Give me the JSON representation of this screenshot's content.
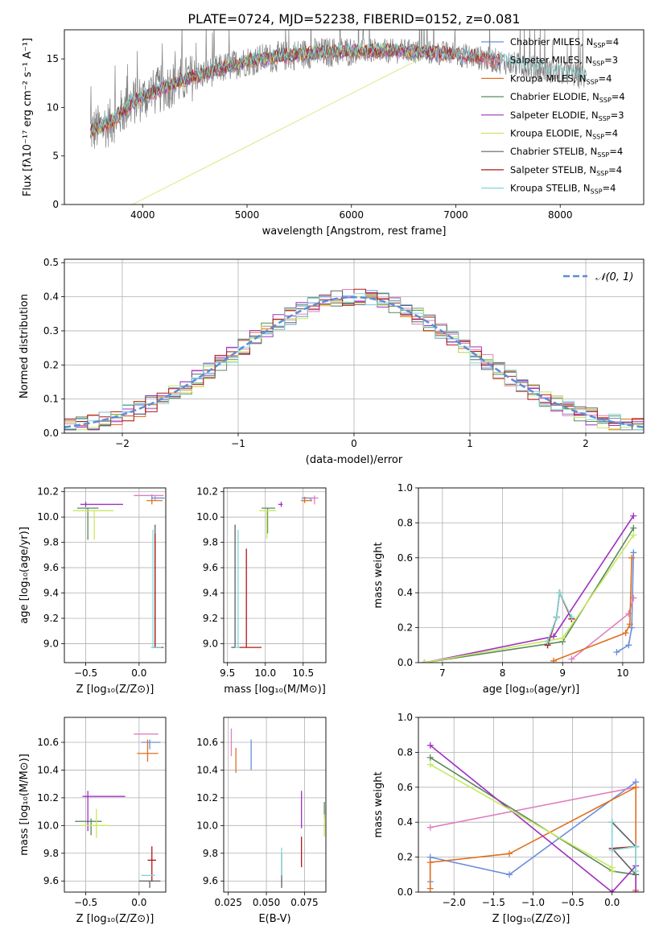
{
  "title": "PLATE=0724, MJD=52238, FIBERID=0152, z=0.081",
  "colors": {
    "chabrier_miles": "#6a8fdc",
    "salpeter_miles": "#e07fbf",
    "kroupa_miles": "#e07020",
    "chabrier_elodie": "#5a8a5a",
    "salpeter_elodie": "#a030c0",
    "kroupa_elodie": "#c8e860",
    "chabrier_stelib": "#606060",
    "salpeter_stelib": "#b01818",
    "kroupa_stelib": "#80d8d8",
    "gauss": "#5b8dd6",
    "data": "#808080"
  },
  "chart_data": [
    {
      "id": "spectrum",
      "type": "line",
      "xlabel": "wavelength [Angstrom, rest frame]",
      "ylabel": "Flux [fλ10⁻¹⁷ erg cm⁻² s⁻¹ A⁻¹]",
      "xlim": [
        3250,
        8800
      ],
      "ylim": [
        0,
        18
      ],
      "xticks": [
        "4000",
        "5000",
        "6000",
        "7000",
        "8000"
      ],
      "yticks": [
        "0",
        "5",
        "10",
        "15"
      ],
      "legend_position": "top-right",
      "legend": [
        {
          "key": "chabrier_miles",
          "label": "Chabrier MILES, N",
          "sub": "SSP",
          "tail": "=4"
        },
        {
          "key": "salpeter_miles",
          "label": "Salpeter MILES, N",
          "sub": "SSP",
          "tail": "=3"
        },
        {
          "key": "kroupa_miles",
          "label": "Kroupa MILES, N",
          "sub": "SSP",
          "tail": "=4"
        },
        {
          "key": "chabrier_elodie",
          "label": "Chabrier ELODIE, N",
          "sub": "SSP",
          "tail": "=4"
        },
        {
          "key": "salpeter_elodie",
          "label": "Salpeter ELODIE, N",
          "sub": "SSP",
          "tail": "=3"
        },
        {
          "key": "kroupa_elodie",
          "label": "Kroupa ELODIE, N",
          "sub": "SSP",
          "tail": "=4"
        },
        {
          "key": "chabrier_stelib",
          "label": "Chabrier STELIB, N",
          "sub": "SSP",
          "tail": "=4"
        },
        {
          "key": "salpeter_stelib",
          "label": "Salpeter STELIB, N",
          "sub": "SSP",
          "tail": "=4"
        },
        {
          "key": "kroupa_stelib",
          "label": "Kroupa STELIB, N",
          "sub": "SSP",
          "tail": "=4"
        }
      ],
      "continuum": {
        "x": [
          3500,
          3700,
          3900,
          4100,
          4300,
          4600,
          5000,
          5500,
          6000,
          6500,
          7000,
          7400
        ],
        "y": [
          7.5,
          8.5,
          10.5,
          11.5,
          12.5,
          13.5,
          14.8,
          15.5,
          15.8,
          15.8,
          15.5,
          14.8
        ]
      }
    },
    {
      "id": "residuals",
      "type": "histogram",
      "xlabel": "(data-model)/error",
      "ylabel": "Normed distribution",
      "xlim": [
        -2.5,
        2.5
      ],
      "ylim": [
        0,
        0.51
      ],
      "xticks": [
        "−2",
        "−1",
        "0",
        "1",
        "2"
      ],
      "yticks": [
        "0.0",
        "0.1",
        "0.2",
        "0.3",
        "0.4",
        "0.5"
      ],
      "legend": "𝒩(0, 1)",
      "legend_position": "top-right",
      "gaussian": {
        "mu": 0,
        "sigma": 1
      }
    },
    {
      "id": "age_vs_Z",
      "type": "errorbar",
      "xlabel": "Z [log₁₀(Z/Z⊙)]",
      "ylabel": "age  [log₁₀(age/yr)]",
      "xlim": [
        -0.7,
        0.25
      ],
      "ylim": [
        8.85,
        10.23
      ],
      "xticks": [
        "−0.5",
        "0.0"
      ],
      "yticks": [
        "9.0",
        "9.2",
        "9.4",
        "9.6",
        "9.8",
        "10.0",
        "10.2"
      ],
      "points": [
        {
          "key": "chabrier_miles",
          "x": 0.12,
          "y": 10.15,
          "ex": [
            0.0,
            0.12
          ],
          "ey": [
            0.02,
            0.03
          ]
        },
        {
          "key": "salpeter_miles",
          "x": 0.15,
          "y": 10.17,
          "ex": [
            0.2,
            0.08
          ],
          "ey": [
            0.04,
            0.0
          ]
        },
        {
          "key": "kroupa_miles",
          "x": 0.12,
          "y": 10.13,
          "ex": [
            0.05,
            0.1
          ],
          "ey": [
            0.03,
            0.0
          ]
        },
        {
          "key": "chabrier_elodie",
          "x": -0.48,
          "y": 10.07,
          "ex": [
            0.1,
            0.1
          ],
          "ey": [
            0.25,
            0.0
          ]
        },
        {
          "key": "salpeter_elodie",
          "x": -0.5,
          "y": 10.1,
          "ex": [
            0.05,
            0.35
          ],
          "ey": [
            0.02,
            0.02
          ]
        },
        {
          "key": "kroupa_elodie",
          "x": -0.42,
          "y": 10.05,
          "ex": [
            0.2,
            0.18
          ],
          "ey": [
            0.23,
            0.0
          ]
        },
        {
          "key": "chabrier_stelib",
          "x": 0.15,
          "y": 8.97,
          "ex": [
            0.02,
            0.08
          ],
          "ey": [
            0.0,
            0.97
          ]
        },
        {
          "key": "salpeter_stelib",
          "x": 0.15,
          "y": 8.97,
          "ex": [
            0.02,
            0.06
          ],
          "ey": [
            0.0,
            0.9
          ]
        },
        {
          "key": "kroupa_stelib",
          "x": 0.13,
          "y": 8.97,
          "ex": [
            0.02,
            0.08
          ],
          "ey": [
            0.0,
            0.93
          ]
        }
      ]
    },
    {
      "id": "age_vs_mass",
      "type": "errorbar",
      "xlabel": "mass [log₁₀(M/M⊙)]",
      "xlim": [
        9.45,
        10.8
      ],
      "ylim": [
        8.85,
        10.23
      ],
      "xticks": [
        "9.5",
        "10.0",
        "10.5"
      ],
      "yticks": [
        "9.0",
        "9.2",
        "9.4",
        "9.6",
        "9.8",
        "10.0",
        "10.2"
      ],
      "points": [
        {
          "key": "chabrier_miles",
          "x": 10.6,
          "y": 10.15,
          "ex": [
            0.12,
            0.05
          ],
          "ey": [
            0.02,
            0.0
          ]
        },
        {
          "key": "salpeter_miles",
          "x": 10.65,
          "y": 10.15,
          "ex": [
            0.05,
            0.05
          ],
          "ey": [
            0.05,
            0.02
          ]
        },
        {
          "key": "kroupa_miles",
          "x": 10.52,
          "y": 10.13,
          "ex": [
            0.05,
            0.1
          ],
          "ey": [
            0.02,
            0.03
          ]
        },
        {
          "key": "chabrier_elodie",
          "x": 10.03,
          "y": 10.07,
          "ex": [
            0.08,
            0.1
          ],
          "ey": [
            0.2,
            0.0
          ]
        },
        {
          "key": "salpeter_elodie",
          "x": 10.21,
          "y": 10.1,
          "ex": [
            0.04,
            0.02
          ],
          "ey": [
            0.02,
            0.02
          ]
        },
        {
          "key": "kroupa_elodie",
          "x": 10.02,
          "y": 10.05,
          "ex": [
            0.1,
            0.12
          ],
          "ey": [
            0.22,
            0.0
          ]
        },
        {
          "key": "chabrier_stelib",
          "x": 9.6,
          "y": 8.97,
          "ex": [
            0.05,
            0.0
          ],
          "ey": [
            0.0,
            0.97
          ]
        },
        {
          "key": "salpeter_stelib",
          "x": 9.75,
          "y": 8.97,
          "ex": [
            0.1,
            0.2
          ],
          "ey": [
            0.0,
            0.78
          ]
        },
        {
          "key": "kroupa_stelib",
          "x": 9.64,
          "y": 8.97,
          "ex": [
            0.04,
            0.02
          ],
          "ey": [
            0.0,
            0.93
          ]
        }
      ]
    },
    {
      "id": "weight_vs_age",
      "type": "line",
      "xlabel": "age  [log₁₀(age/yr)]",
      "ylabel": "mass weight",
      "xlim": [
        6.6,
        10.35
      ],
      "ylim": [
        0,
        1.0
      ],
      "xticks": [
        "7",
        "8",
        "9",
        "10"
      ],
      "yticks": [
        "0.0",
        "0.2",
        "0.4",
        "0.6",
        "0.8",
        "1.0"
      ],
      "series": [
        {
          "key": "chabrier_miles",
          "x": [
            9.9,
            10.1,
            10.15,
            10.18
          ],
          "y": [
            0.06,
            0.1,
            0.2,
            0.63
          ]
        },
        {
          "key": "salpeter_miles",
          "x": [
            9.15,
            10.1,
            10.18
          ],
          "y": [
            0.02,
            0.28,
            0.37
          ]
        },
        {
          "key": "kroupa_miles",
          "x": [
            8.85,
            10.05,
            10.12,
            10.15
          ],
          "y": [
            0.01,
            0.17,
            0.22,
            0.6
          ]
        },
        {
          "key": "chabrier_elodie",
          "x": [
            6.7,
            9.0,
            10.18
          ],
          "y": [
            0.0,
            0.12,
            0.77
          ]
        },
        {
          "key": "salpeter_elodie",
          "x": [
            6.7,
            8.85,
            10.18
          ],
          "y": [
            0.0,
            0.15,
            0.84
          ]
        },
        {
          "key": "kroupa_elodie",
          "x": [
            6.7,
            9.0,
            10.18
          ],
          "y": [
            0.0,
            0.14,
            0.73
          ]
        },
        {
          "key": "chabrier_stelib",
          "x": [
            8.75,
            8.9,
            8.95,
            9.15
          ],
          "y": [
            0.1,
            0.26,
            0.4,
            0.25
          ]
        },
        {
          "key": "salpeter_stelib",
          "x": [
            8.75,
            8.9,
            8.95,
            9.15
          ],
          "y": [
            0.1,
            0.26,
            0.4,
            0.25
          ]
        },
        {
          "key": "kroupa_stelib",
          "x": [
            8.75,
            8.9,
            8.95,
            9.15
          ],
          "y": [
            0.12,
            0.26,
            0.4,
            0.26
          ]
        }
      ]
    },
    {
      "id": "mass_vs_Z",
      "type": "errorbar",
      "xlabel": "Z [log₁₀(Z/Z⊙)]",
      "ylabel": "mass [log₁₀(M/M⊙)]",
      "xlim": [
        -0.7,
        0.25
      ],
      "ylim": [
        9.52,
        10.78
      ],
      "xticks": [
        "−0.5",
        "0.0"
      ],
      "yticks": [
        "9.6",
        "9.8",
        "10.0",
        "10.2",
        "10.4",
        "10.6"
      ],
      "points": [
        {
          "key": "chabrier_miles",
          "x": 0.1,
          "y": 10.6,
          "ex": [
            0.08,
            0.1
          ],
          "ey": [
            0.05,
            0.02
          ]
        },
        {
          "key": "salpeter_miles",
          "x": 0.1,
          "y": 10.66,
          "ex": [
            0.15,
            0.08
          ],
          "ey": [
            0.0,
            0.0
          ]
        },
        {
          "key": "kroupa_miles",
          "x": 0.08,
          "y": 10.52,
          "ex": [
            0.1,
            0.1
          ],
          "ey": [
            0.06,
            0.1
          ]
        },
        {
          "key": "chabrier_elodie",
          "x": -0.45,
          "y": 10.03,
          "ex": [
            0.15,
            0.1
          ],
          "ey": [
            0.1,
            0.02
          ]
        },
        {
          "key": "salpeter_elodie",
          "x": -0.48,
          "y": 10.21,
          "ex": [
            0.05,
            0.35
          ],
          "ey": [
            0.25,
            0.04
          ]
        },
        {
          "key": "kroupa_elodie",
          "x": -0.4,
          "y": 10.0,
          "ex": [
            0.15,
            0.12
          ],
          "ey": [
            0.09,
            0.12
          ]
        },
        {
          "key": "chabrier_stelib",
          "x": 0.1,
          "y": 9.6,
          "ex": [
            0.1,
            0.1
          ],
          "ey": [
            0.05,
            0.0
          ]
        },
        {
          "key": "salpeter_stelib",
          "x": 0.12,
          "y": 9.75,
          "ex": [
            0.04,
            0.04
          ],
          "ey": [
            0.15,
            0.1
          ]
        },
        {
          "key": "kroupa_stelib",
          "x": 0.1,
          "y": 9.64,
          "ex": [
            0.08,
            0.05
          ],
          "ey": [
            0.0,
            0.0
          ]
        }
      ]
    },
    {
      "id": "mass_vs_ebv",
      "type": "errorbar",
      "xlabel": "E(B-V)",
      "xlim": [
        0.022,
        0.089
      ],
      "ylim": [
        9.52,
        10.78
      ],
      "xticks": [
        "0.025",
        "0.050",
        "0.075"
      ],
      "yticks": [
        "9.6",
        "9.8",
        "10.0",
        "10.2",
        "10.4",
        "10.6"
      ],
      "points": [
        {
          "key": "chabrier_miles",
          "x": 0.04,
          "y": 10.52,
          "ex": [
            0,
            0
          ],
          "ey": [
            0.12,
            0.1
          ]
        },
        {
          "key": "salpeter_miles",
          "x": 0.027,
          "y": 10.6,
          "ex": [
            0,
            0
          ],
          "ey": [
            0.1,
            0.1
          ]
        },
        {
          "key": "kroupa_miles",
          "x": 0.03,
          "y": 10.48,
          "ex": [
            0,
            0
          ],
          "ey": [
            0.1,
            0.08
          ]
        },
        {
          "key": "chabrier_elodie",
          "x": 0.088,
          "y": 10.05,
          "ex": [
            0,
            0
          ],
          "ey": [
            0.0,
            0.12
          ]
        },
        {
          "key": "salpeter_elodie",
          "x": 0.073,
          "y": 10.1,
          "ex": [
            0,
            0
          ],
          "ey": [
            0.12,
            0.15
          ]
        },
        {
          "key": "kroupa_elodie",
          "x": 0.088,
          "y": 10.0,
          "ex": [
            0,
            0
          ],
          "ey": [
            0.08,
            0.08
          ]
        },
        {
          "key": "chabrier_stelib",
          "x": 0.06,
          "y": 9.68,
          "ex": [
            0,
            0
          ],
          "ey": [
            0.13,
            0.12
          ]
        },
        {
          "key": "salpeter_stelib",
          "x": 0.073,
          "y": 9.8,
          "ex": [
            0,
            0
          ],
          "ey": [
            0.1,
            0.12
          ]
        },
        {
          "key": "kroupa_stelib",
          "x": 0.06,
          "y": 9.74,
          "ex": [
            0,
            0
          ],
          "ey": [
            0.1,
            0.1
          ]
        }
      ]
    },
    {
      "id": "weight_vs_Z",
      "type": "line",
      "xlabel": "Z [log₁₀(Z/Z⊙)]",
      "ylabel": "mass weight",
      "xlim": [
        -2.45,
        0.4
      ],
      "ylim": [
        0,
        1.0
      ],
      "xticks": [
        "−2.0",
        "−1.5",
        "−1.0",
        "−0.5",
        "0.0"
      ],
      "yticks": [
        "0.0",
        "0.2",
        "0.4",
        "0.6",
        "0.8",
        "1.0"
      ],
      "series": [
        {
          "key": "chabrier_miles",
          "x": [
            -2.3,
            -2.3,
            -1.3,
            0.3
          ],
          "y": [
            0.06,
            0.2,
            0.1,
            0.63
          ]
        },
        {
          "key": "salpeter_miles",
          "x": [
            -2.3,
            0.3
          ],
          "y": [
            0.37,
            0.6
          ]
        },
        {
          "key": "kroupa_miles",
          "x": [
            -2.3,
            -2.3,
            -1.3,
            0.3,
            0.3,
            0.3
          ],
          "y": [
            0.02,
            0.17,
            0.22,
            0.6,
            0.6,
            0.01
          ]
        },
        {
          "key": "chabrier_elodie",
          "x": [
            -2.3,
            0.0,
            0.3
          ],
          "y": [
            0.77,
            0.12,
            0.1
          ]
        },
        {
          "key": "salpeter_elodie",
          "x": [
            -2.3,
            0.0,
            0.3,
            0.3
          ],
          "y": [
            0.84,
            0.0,
            0.15,
            0.0
          ]
        },
        {
          "key": "kroupa_elodie",
          "x": [
            -2.3,
            0.0,
            0.0
          ],
          "y": [
            0.73,
            0.14,
            0.12
          ]
        },
        {
          "key": "chabrier_stelib",
          "x": [
            0.0,
            0.3,
            0.3,
            0.0
          ],
          "y": [
            0.4,
            0.26,
            0.1,
            0.25
          ]
        },
        {
          "key": "salpeter_stelib",
          "x": [
            0.0,
            0.3
          ],
          "y": [
            0.25,
            0.26
          ]
        },
        {
          "key": "kroupa_stelib",
          "x": [
            0.0,
            0.0,
            0.3,
            0.3
          ],
          "y": [
            0.4,
            0.24,
            0.26,
            0.12
          ]
        }
      ]
    }
  ]
}
